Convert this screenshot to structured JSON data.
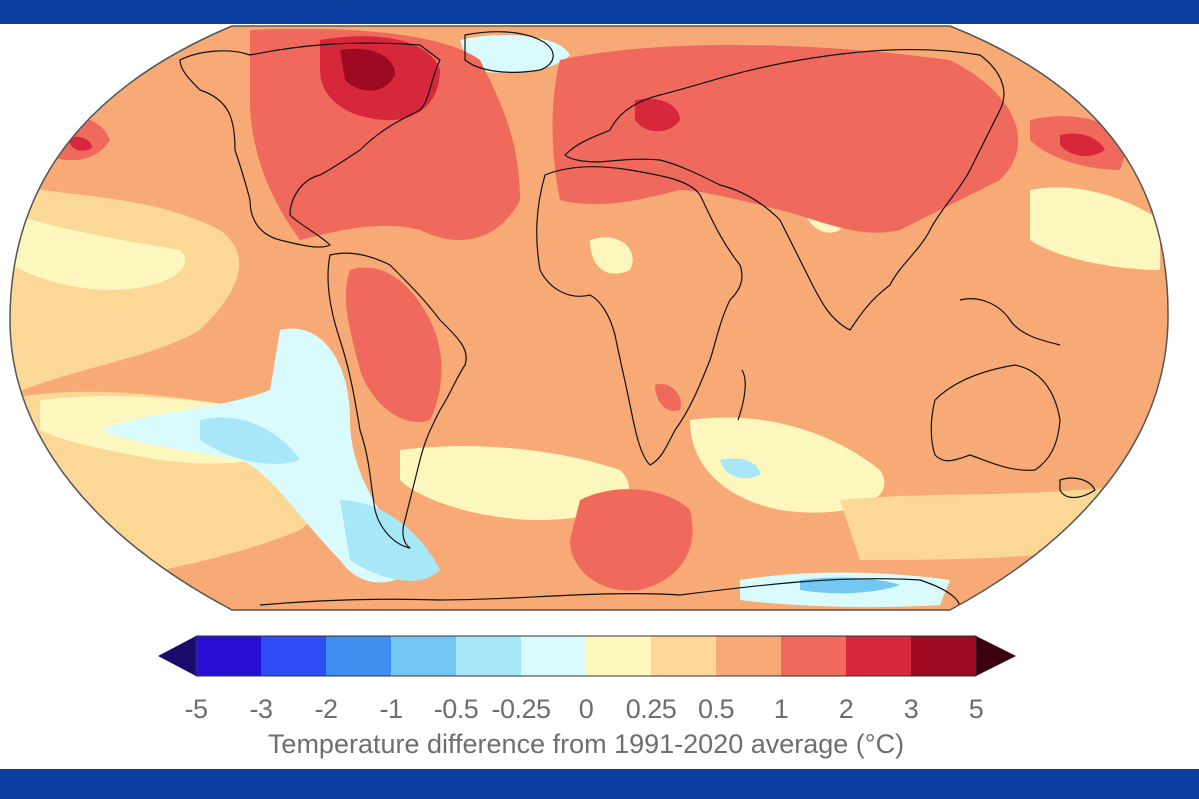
{
  "map": {
    "type": "global temperature anomaly map",
    "projection": "Robinson",
    "colors": {
      "frame_band": "#0b3fa1",
      "coastline": "#111111",
      "ocean_base": "#f7b97a"
    }
  },
  "legend": {
    "title": "Temperature difference from 1991-2020 average (°C)",
    "tick_labels": [
      "-5",
      "-3",
      "-2",
      "-1",
      "-0.5",
      "-0.25",
      "0",
      "0.25",
      "0.5",
      "1",
      "2",
      "3",
      "5"
    ],
    "bins": [
      {
        "from": -5,
        "to": -3,
        "color": "#2a0fd6"
      },
      {
        "from": -3,
        "to": -2,
        "color": "#2f4df5"
      },
      {
        "from": -2,
        "to": -1,
        "color": "#3e8ff0"
      },
      {
        "from": -1,
        "to": -0.5,
        "color": "#72c8f2"
      },
      {
        "from": -0.5,
        "to": -0.25,
        "color": "#a7e7f7"
      },
      {
        "from": -0.25,
        "to": 0,
        "color": "#d9fbfd"
      },
      {
        "from": 0,
        "to": 0.25,
        "color": "#fdf7bd"
      },
      {
        "from": 0.25,
        "to": 0.5,
        "color": "#fbd896"
      },
      {
        "from": 0.5,
        "to": 1,
        "color": "#f7aa75"
      },
      {
        "from": 1,
        "to": 2,
        "color": "#ef6a5c"
      },
      {
        "from": 2,
        "to": 3,
        "color": "#d6283a"
      },
      {
        "from": 3,
        "to": 5,
        "color": "#9e0a22"
      }
    ],
    "under_color": "#1a0a6b",
    "over_color": "#3d0212"
  }
}
